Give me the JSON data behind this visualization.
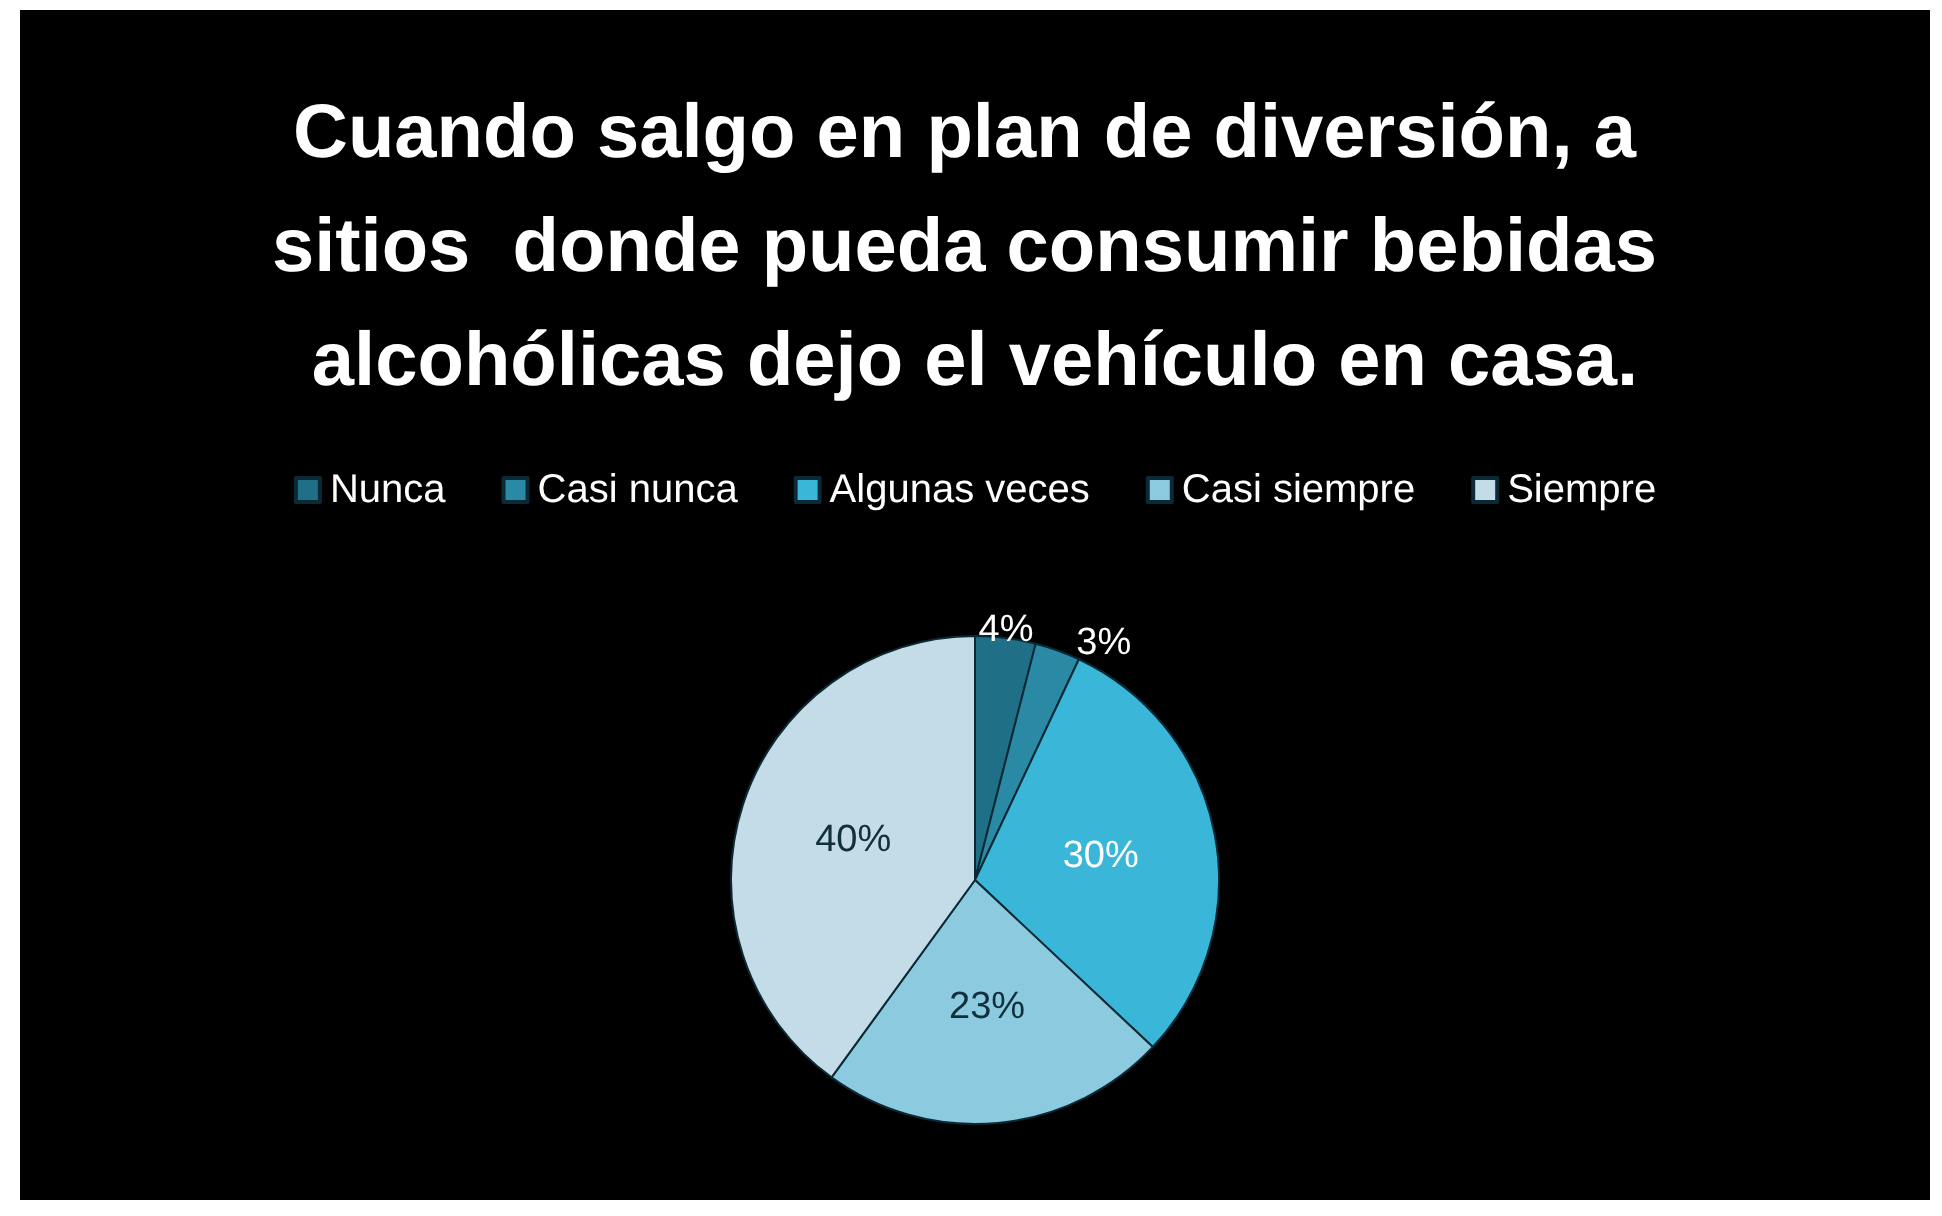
{
  "chart_data": {
    "type": "pie",
    "title": "Cuando salgo en plan de diversión, a sitios  donde pueda consumir bebidas alcohólicas dejo el vehículo en casa.",
    "categories": [
      "Nunca",
      "Casi nunca",
      "Algunas veces",
      "Casi siempre",
      "Siempre"
    ],
    "values": [
      4,
      3,
      30,
      23,
      40
    ],
    "value_labels": [
      "4%",
      "3%",
      "30%",
      "23%",
      "40%"
    ],
    "colors": [
      "#1f6f86",
      "#2a8aa6",
      "#3ab7d8",
      "#8ccae0",
      "#c4dce7"
    ],
    "legend": "top"
  }
}
